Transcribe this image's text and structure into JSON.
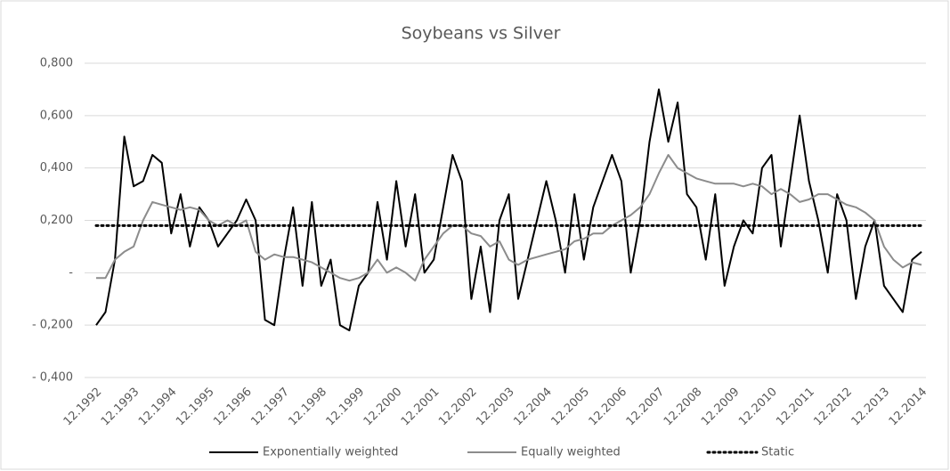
{
  "chart_data": {
    "type": "line",
    "title": "Soybeans vs Silver",
    "categories": [
      "12.1992",
      null,
      null,
      null,
      "12.1993",
      null,
      null,
      null,
      "12.1994",
      null,
      null,
      null,
      "12.1995",
      null,
      null,
      null,
      "12.1996",
      null,
      null,
      null,
      "12.1997",
      null,
      null,
      null,
      "12.1998",
      null,
      null,
      null,
      "12.1999",
      null,
      null,
      null,
      "12.2000",
      null,
      null,
      null,
      "12.2001",
      null,
      null,
      null,
      "12.2002",
      null,
      null,
      null,
      "12.2003",
      null,
      null,
      null,
      "12.2004",
      null,
      null,
      null,
      "12.2005",
      null,
      null,
      null,
      "12.2006",
      null,
      null,
      null,
      "12.2007",
      null,
      null,
      null,
      "12.2008",
      null,
      null,
      null,
      "12.2009",
      null,
      null,
      null,
      "12.2010",
      null,
      null,
      null,
      "12.2011",
      null,
      null,
      null,
      "12.2012",
      null,
      null,
      null,
      "12.2013",
      null,
      null,
      null,
      "12.2014"
    ],
    "series": [
      {
        "name": "Exponentially weighted",
        "color": "#000000",
        "style": "solid",
        "width": 2,
        "values": [
          -0.2,
          -0.15,
          0.05,
          0.52,
          0.33,
          0.35,
          0.45,
          0.42,
          0.15,
          0.3,
          0.1,
          0.25,
          0.2,
          0.1,
          0.15,
          0.2,
          0.28,
          0.2,
          -0.18,
          -0.2,
          0.05,
          0.25,
          -0.05,
          0.27,
          -0.05,
          0.05,
          -0.2,
          -0.22,
          -0.05,
          0.0,
          0.27,
          0.05,
          0.35,
          0.1,
          0.3,
          0.0,
          0.05,
          0.25,
          0.45,
          0.35,
          -0.1,
          0.1,
          -0.15,
          0.2,
          0.3,
          -0.1,
          0.05,
          0.2,
          0.35,
          0.2,
          0.0,
          0.3,
          0.05,
          0.25,
          0.35,
          0.45,
          0.35,
          0.0,
          0.2,
          0.5,
          0.7,
          0.5,
          0.65,
          0.3,
          0.25,
          0.05,
          0.3,
          -0.05,
          0.1,
          0.2,
          0.15,
          0.4,
          0.45,
          0.1,
          0.35,
          0.6,
          0.35,
          0.2,
          0.0,
          0.3,
          0.2,
          -0.1,
          0.1,
          0.2,
          -0.05,
          -0.1,
          -0.15,
          0.05,
          0.08
        ]
      },
      {
        "name": "Equally weighted",
        "color": "#8c8c8c",
        "style": "solid",
        "width": 2,
        "values": [
          -0.02,
          -0.02,
          0.05,
          0.08,
          0.1,
          0.2,
          0.27,
          0.26,
          0.25,
          0.24,
          0.25,
          0.24,
          0.2,
          0.18,
          0.2,
          0.18,
          0.2,
          0.08,
          0.05,
          0.07,
          0.06,
          0.06,
          0.05,
          0.04,
          0.02,
          0.0,
          -0.02,
          -0.03,
          -0.02,
          0.0,
          0.05,
          0.0,
          0.02,
          0.0,
          -0.03,
          0.05,
          0.1,
          0.15,
          0.18,
          0.18,
          0.15,
          0.14,
          0.1,
          0.12,
          0.05,
          0.03,
          0.05,
          0.06,
          0.07,
          0.08,
          0.09,
          0.12,
          0.13,
          0.15,
          0.15,
          0.18,
          0.2,
          0.22,
          0.25,
          0.3,
          0.38,
          0.45,
          0.4,
          0.38,
          0.36,
          0.35,
          0.34,
          0.34,
          0.34,
          0.33,
          0.34,
          0.33,
          0.3,
          0.32,
          0.3,
          0.27,
          0.28,
          0.3,
          0.3,
          0.28,
          0.26,
          0.25,
          0.23,
          0.2,
          0.1,
          0.05,
          0.02,
          0.04,
          0.03
        ]
      },
      {
        "name": "Static",
        "color": "#000000",
        "style": "dotted",
        "width": 3,
        "values": [
          0.18,
          0.18,
          0.18,
          0.18,
          0.18,
          0.18,
          0.18,
          0.18,
          0.18,
          0.18,
          0.18,
          0.18,
          0.18,
          0.18,
          0.18,
          0.18,
          0.18,
          0.18,
          0.18,
          0.18,
          0.18,
          0.18,
          0.18,
          0.18,
          0.18,
          0.18,
          0.18,
          0.18,
          0.18,
          0.18,
          0.18,
          0.18,
          0.18,
          0.18,
          0.18,
          0.18,
          0.18,
          0.18,
          0.18,
          0.18,
          0.18,
          0.18,
          0.18,
          0.18,
          0.18,
          0.18,
          0.18,
          0.18,
          0.18,
          0.18,
          0.18,
          0.18,
          0.18,
          0.18,
          0.18,
          0.18,
          0.18,
          0.18,
          0.18,
          0.18,
          0.18,
          0.18,
          0.18,
          0.18,
          0.18,
          0.18,
          0.18,
          0.18,
          0.18,
          0.18,
          0.18,
          0.18,
          0.18,
          0.18,
          0.18,
          0.18,
          0.18,
          0.18,
          0.18,
          0.18,
          0.18,
          0.18,
          0.18,
          0.18,
          0.18,
          0.18,
          0.18,
          0.18,
          0.18
        ]
      }
    ],
    "ylim": [
      -0.4,
      0.8
    ],
    "yticks": [
      {
        "value": -0.4,
        "label": "- 0,400"
      },
      {
        "value": -0.2,
        "label": "- 0,200"
      },
      {
        "value": 0,
        "label": "-"
      },
      {
        "value": 0.2,
        "label": "0,200"
      },
      {
        "value": 0.4,
        "label": "0,400"
      },
      {
        "value": 0.6,
        "label": "0,600"
      },
      {
        "value": 0.8,
        "label": "0,800"
      }
    ],
    "grid": true,
    "legend": "bottom"
  }
}
